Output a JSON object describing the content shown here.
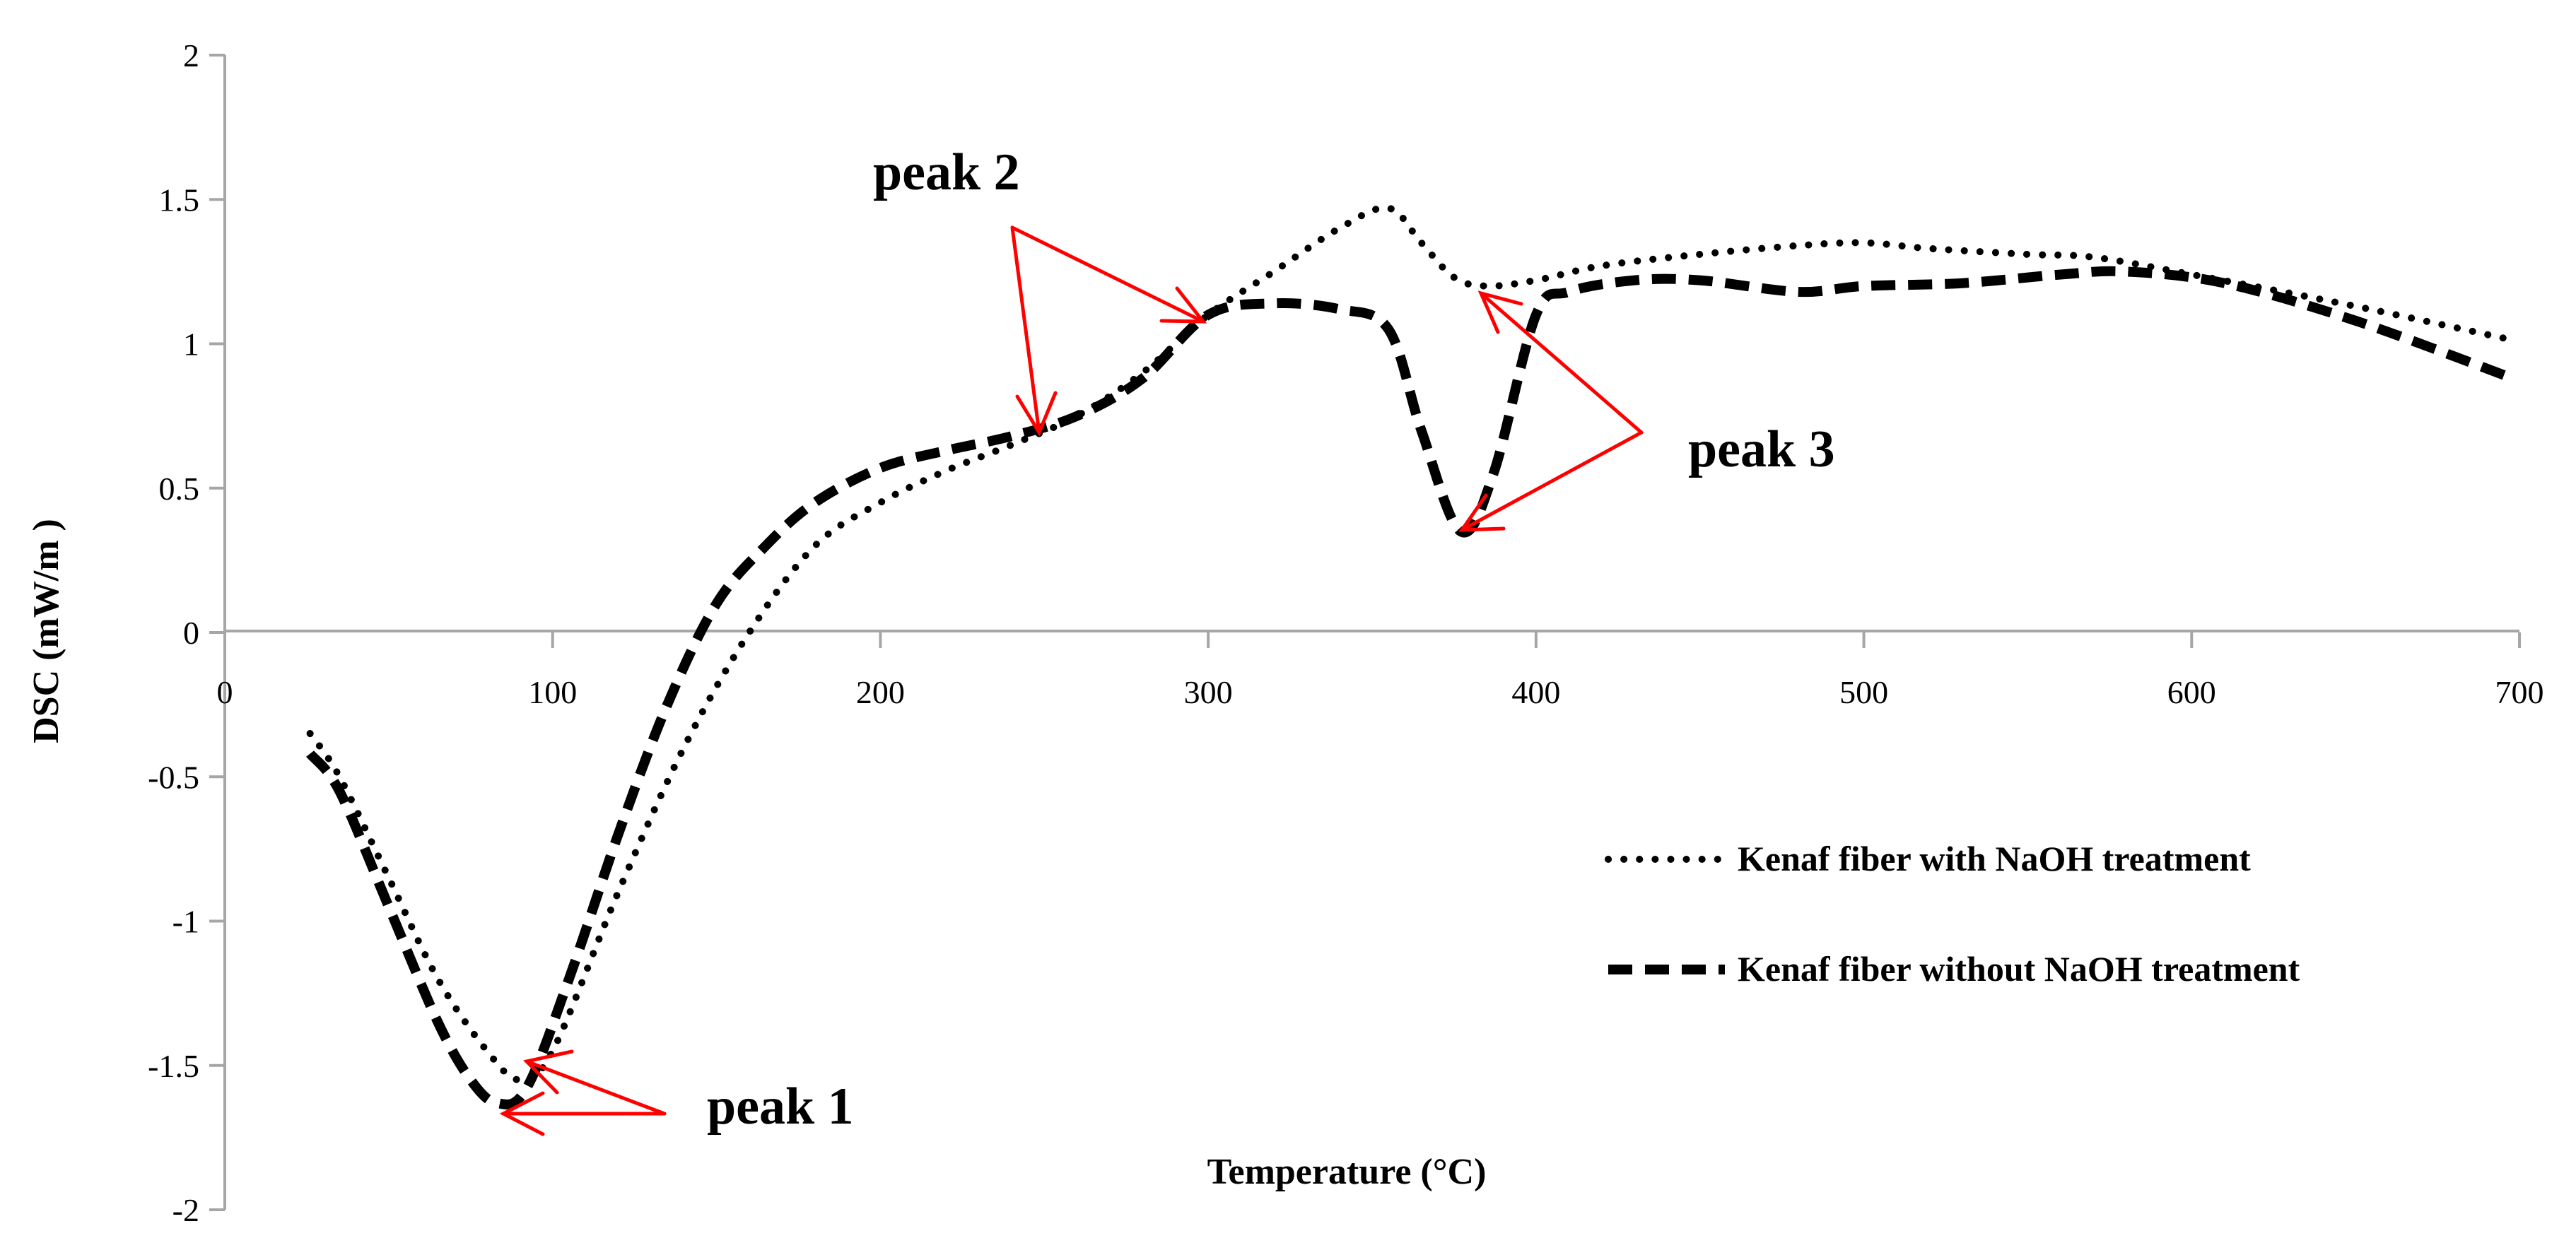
{
  "chart_data": {
    "type": "line",
    "title": "",
    "xlabel": "Temperature (°C)",
    "ylabel": "DSC (mW/m )",
    "xlim": [
      0,
      700
    ],
    "ylim": [
      -2,
      2
    ],
    "x_ticks": [
      0,
      100,
      200,
      300,
      400,
      500,
      600,
      700
    ],
    "y_ticks": [
      2,
      1.5,
      1,
      0.5,
      0,
      -0.5,
      -1,
      -1.5,
      -2
    ],
    "x_tick_labels": [
      "0",
      "100",
      "200",
      "300",
      "400",
      "500",
      "600",
      "700"
    ],
    "y_tick_labels": [
      "2",
      "1.5",
      "1",
      "0.5",
      "0",
      "-0.5",
      "-1",
      "-1.5",
      "-2"
    ],
    "legend_position": "right",
    "grid": false,
    "series": [
      {
        "name": "Kenaf fiber with NaOH treatment",
        "style": "dotted",
        "color": "#000000",
        "points": [
          [
            26,
            -0.35
          ],
          [
            35,
            -0.5
          ],
          [
            50,
            -0.85
          ],
          [
            65,
            -1.2
          ],
          [
            80,
            -1.45
          ],
          [
            90,
            -1.55
          ],
          [
            100,
            -1.45
          ],
          [
            120,
            -0.9
          ],
          [
            140,
            -0.4
          ],
          [
            160,
            0.0
          ],
          [
            180,
            0.3
          ],
          [
            200,
            0.45
          ],
          [
            220,
            0.56
          ],
          [
            240,
            0.65
          ],
          [
            260,
            0.75
          ],
          [
            280,
            0.9
          ],
          [
            300,
            1.1
          ],
          [
            320,
            1.25
          ],
          [
            340,
            1.4
          ],
          [
            355,
            1.47
          ],
          [
            365,
            1.35
          ],
          [
            375,
            1.23
          ],
          [
            385,
            1.2
          ],
          [
            400,
            1.22
          ],
          [
            420,
            1.27
          ],
          [
            450,
            1.31
          ],
          [
            480,
            1.34
          ],
          [
            500,
            1.35
          ],
          [
            520,
            1.33
          ],
          [
            550,
            1.31
          ],
          [
            570,
            1.3
          ],
          [
            600,
            1.24
          ],
          [
            650,
            1.13
          ],
          [
            695,
            1.02
          ]
        ]
      },
      {
        "name": "Kenaf fiber without NaOH treatment",
        "style": "dashed",
        "color": "#000000",
        "points": [
          [
            26,
            -0.42
          ],
          [
            35,
            -0.55
          ],
          [
            50,
            -0.95
          ],
          [
            65,
            -1.35
          ],
          [
            75,
            -1.55
          ],
          [
            83,
            -1.63
          ],
          [
            92,
            -1.58
          ],
          [
            105,
            -1.2
          ],
          [
            120,
            -0.7
          ],
          [
            135,
            -0.25
          ],
          [
            150,
            0.1
          ],
          [
            165,
            0.3
          ],
          [
            180,
            0.45
          ],
          [
            200,
            0.57
          ],
          [
            220,
            0.63
          ],
          [
            240,
            0.68
          ],
          [
            260,
            0.75
          ],
          [
            280,
            0.88
          ],
          [
            300,
            1.1
          ],
          [
            320,
            1.14
          ],
          [
            340,
            1.12
          ],
          [
            355,
            1.05
          ],
          [
            365,
            0.7
          ],
          [
            377,
            0.35
          ],
          [
            387,
            0.55
          ],
          [
            400,
            1.1
          ],
          [
            410,
            1.18
          ],
          [
            430,
            1.22
          ],
          [
            450,
            1.22
          ],
          [
            480,
            1.18
          ],
          [
            500,
            1.2
          ],
          [
            530,
            1.21
          ],
          [
            560,
            1.24
          ],
          [
            580,
            1.25
          ],
          [
            610,
            1.21
          ],
          [
            650,
            1.08
          ],
          [
            698,
            0.88
          ]
        ]
      }
    ],
    "annotations": [
      {
        "label": "peak 1",
        "color": "#ff0000"
      },
      {
        "label": "peak 2",
        "color": "#ff0000"
      },
      {
        "label": "peak 3",
        "color": "#ff0000"
      }
    ]
  }
}
